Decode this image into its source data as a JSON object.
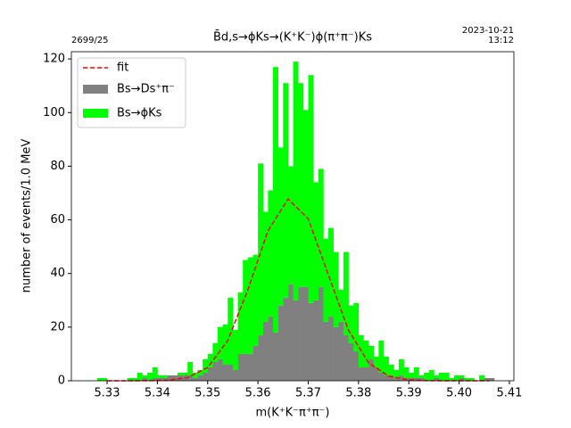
{
  "chart_data": {
    "type": "histogram",
    "title": "B̄d,s→ϕKs→(K⁺K⁻)ϕ(π⁺π⁻)Ks",
    "annotations": [
      "2699/25",
      "2023-10-21",
      "13:12"
    ],
    "xlabel": "m(K⁺K⁻π⁺π⁻)",
    "ylabel": "number of events/1.0 MeV",
    "bins": [
      5.328,
      5.329,
      5.33,
      5.331,
      5.332,
      5.333,
      5.334,
      5.335,
      5.336,
      5.337,
      5.338,
      5.339,
      5.34,
      5.341,
      5.342,
      5.343,
      5.344,
      5.345,
      5.346,
      5.347,
      5.348,
      5.349,
      5.35,
      5.351,
      5.352,
      5.353,
      5.354,
      5.355,
      5.356,
      5.357,
      5.358,
      5.359,
      5.36,
      5.361,
      5.362,
      5.363,
      5.364,
      5.365,
      5.366,
      5.367,
      5.368,
      5.369,
      5.37,
      5.371,
      5.372,
      5.373,
      5.374,
      5.375,
      5.376,
      5.377,
      5.378,
      5.379,
      5.38,
      5.381,
      5.382,
      5.383,
      5.384,
      5.385,
      5.386,
      5.387,
      5.388,
      5.389,
      5.39,
      5.391,
      5.392,
      5.393,
      5.394,
      5.395,
      5.396,
      5.397,
      5.398,
      5.399,
      5.4,
      5.401,
      5.402,
      5.403,
      5.404,
      5.405,
      5.406,
      5.407
    ],
    "stacked": true,
    "series": [
      {
        "name": "Bs→Ds⁺π⁻",
        "color": "#808080",
        "values": [
          0,
          0,
          0,
          0,
          0,
          0,
          0,
          0,
          0,
          1,
          0,
          1,
          1,
          1,
          2,
          2,
          2,
          2,
          2,
          1,
          2,
          3,
          5,
          7,
          8,
          6,
          6,
          4,
          10,
          10,
          10,
          13,
          17,
          22,
          24,
          18,
          28,
          31,
          36,
          30,
          35,
          35,
          29,
          30,
          35,
          22,
          24,
          20,
          22,
          17,
          14,
          11,
          5,
          5,
          8,
          5,
          3,
          2,
          2,
          1,
          2,
          1,
          1,
          1,
          1,
          0,
          0,
          1,
          0,
          0,
          0,
          0,
          1,
          0,
          0,
          0,
          0,
          1,
          1
        ]
      },
      {
        "name": "Bs→ϕKs",
        "color": "#00ff00",
        "values": [
          1,
          1,
          0,
          0,
          0,
          0,
          1,
          1,
          3,
          1,
          3,
          4,
          1,
          1,
          0,
          0,
          1,
          1,
          5,
          2,
          2,
          5,
          5,
          7,
          12,
          15,
          25,
          15,
          23,
          35,
          36,
          34,
          64,
          41,
          47,
          99,
          59,
          80,
          44,
          89,
          76,
          66,
          85,
          44,
          44,
          31,
          33,
          28,
          12,
          31,
          14,
          18,
          12,
          10,
          5,
          4,
          12,
          7,
          4,
          3,
          6,
          4,
          2,
          4,
          1,
          3,
          4,
          1,
          3,
          3,
          1,
          2,
          1,
          1,
          1,
          0,
          2,
          0,
          0
        ]
      }
    ],
    "fit": {
      "name": "fit",
      "color": "#ff0000",
      "x": [
        5.33,
        5.334,
        5.338,
        5.342,
        5.346,
        5.35,
        5.354,
        5.358,
        5.362,
        5.366,
        5.37,
        5.374,
        5.378,
        5.382,
        5.386,
        5.39,
        5.394,
        5.398,
        5.402,
        5.406
      ],
      "values": [
        0,
        0,
        0.03,
        0.21,
        1.18,
        4.9,
        15,
        33.9,
        55.9,
        67.8,
        60.4,
        39.5,
        18.9,
        6.7,
        1.7,
        0.33,
        0.05,
        0,
        0,
        0
      ]
    },
    "xlim": [
      5.3229,
      5.4109
    ],
    "xticks": [
      5.33,
      5.34,
      5.35,
      5.36,
      5.37,
      5.38,
      5.39,
      {
        "value": 5.4,
        "label": "5.40"
      },
      5.41
    ],
    "ylim": [
      0,
      122.7
    ],
    "yticks": [
      0,
      20,
      40,
      60,
      80,
      100,
      120
    ],
    "legend": "upper left"
  }
}
